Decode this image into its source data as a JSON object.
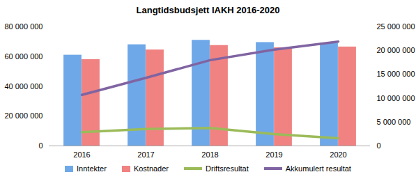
{
  "chart_data": {
    "type": "bar",
    "title": "Langtidsbudsjett IAKH 2016-2020",
    "categories": [
      "2016",
      "2017",
      "2018",
      "2019",
      "2020"
    ],
    "series": [
      {
        "name": "Inntekter",
        "type": "bar",
        "color": "#6fa8e8",
        "values": [
          61000000,
          68000000,
          71000000,
          69500000,
          69000000
        ]
      },
      {
        "name": "Kostnader",
        "type": "bar",
        "color": "#f08282",
        "values": [
          58000000,
          64500000,
          67500000,
          66000000,
          66500000
        ]
      },
      {
        "name": "Driftsresultat",
        "type": "line",
        "axis": "y2",
        "color": "#9bbb59",
        "values": [
          2900000,
          3550000,
          3750000,
          2500000,
          1600000
        ]
      },
      {
        "name": "Akkumulert resultat",
        "type": "line",
        "axis": "y2",
        "color": "#8064a2",
        "values": [
          10700000,
          14300000,
          18000000,
          20200000,
          21900000
        ]
      }
    ],
    "ylim": [
      0,
      80000000
    ],
    "yticks": [
      {
        "value": 0,
        "label": "0"
      },
      {
        "value": 20000000,
        "label": "20 000 000"
      },
      {
        "value": 40000000,
        "label": "40 000 000"
      },
      {
        "value": 60000000,
        "label": "60 000 000"
      },
      {
        "value": 80000000,
        "label": "80 000 000"
      }
    ],
    "y2lim": [
      0,
      25000000
    ],
    "y2ticks": [
      {
        "value": 0,
        "label": "0"
      },
      {
        "value": 5000000,
        "label": "5 000 000"
      },
      {
        "value": 10000000,
        "label": "10 000 000"
      },
      {
        "value": 15000000,
        "label": "15 000 000"
      },
      {
        "value": 20000000,
        "label": "20 000 000"
      },
      {
        "value": 25000000,
        "label": "25 000 000"
      }
    ],
    "grid": false,
    "legend": "bottom"
  }
}
